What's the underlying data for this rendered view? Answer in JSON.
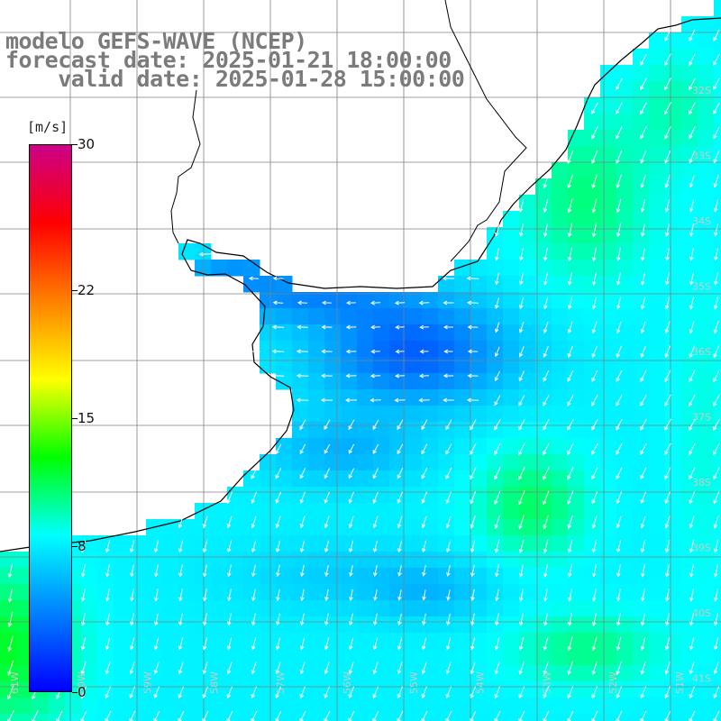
{
  "title": {
    "line1": "modelo GEFS-WAVE (NCEP)",
    "line2": "forecast date: 2025-01-21 18:00:00",
    "line3": "    valid date: 2025-01-28 15:00:00"
  },
  "colorbar": {
    "units": "[m/s]",
    "min": 0,
    "max": 30,
    "ticks": [
      "30",
      "22",
      "15",
      "8",
      "0"
    ],
    "tick_values": [
      30,
      22,
      15,
      8,
      0
    ],
    "colors": [
      "#0000ff",
      "#0080ff",
      "#00ffff",
      "#00ff00",
      "#ffff00",
      "#ff8000",
      "#ff0000",
      "#cc0088"
    ]
  },
  "map": {
    "lat_labels": [
      "32S",
      "33S",
      "34S",
      "35S",
      "36S",
      "37S",
      "38S",
      "39S",
      "40S",
      "41S"
    ],
    "lon_labels": [
      "61W",
      "60W",
      "59W",
      "58W",
      "57W",
      "56W",
      "55W",
      "54W",
      "53W",
      "52W",
      "51W"
    ],
    "colors": {
      "land": "#ffffff",
      "grid": "#808080",
      "coast": "#000000",
      "arrows": "#ffffff"
    }
  }
}
